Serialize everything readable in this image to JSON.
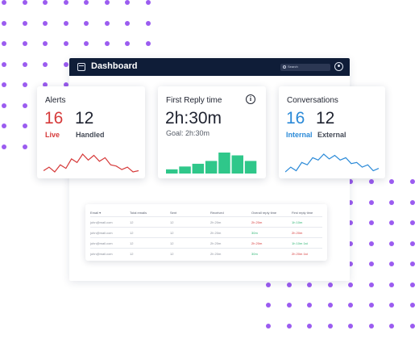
{
  "app": {
    "title": "Dashboard",
    "search_placeholder": "Search"
  },
  "cards": {
    "alerts": {
      "title": "Alerts",
      "live_count": "16",
      "live_label": "Live",
      "handled_count": "12",
      "handled_label": "Handled",
      "sparkline": [
        6,
        9,
        5,
        11,
        8,
        16,
        13,
        20,
        15,
        19,
        14,
        17,
        11,
        10,
        7,
        9,
        5,
        6
      ]
    },
    "first_reply": {
      "title": "First Reply time",
      "value": "2h:30m",
      "goal": "Goal: 2h:30m",
      "bars": [
        3,
        5,
        7,
        9,
        15,
        13,
        9
      ]
    },
    "conversations": {
      "title": "Conversations",
      "internal_count": "16",
      "internal_label": "Internal",
      "external_count": "12",
      "external_label": "External",
      "sparkline": [
        6,
        10,
        7,
        14,
        12,
        18,
        16,
        21,
        17,
        20,
        16,
        18,
        13,
        14,
        10,
        12,
        7,
        9
      ]
    }
  },
  "table": {
    "headers": [
      "Email",
      "Total emails",
      "Sent",
      "Received",
      "Overall reply time",
      "First reply time"
    ],
    "rows": [
      {
        "email": "john@mail.com",
        "total": "12",
        "sent": "12",
        "received": "2h 20m",
        "overall": "2h 20m",
        "first": "1h 10m"
      },
      {
        "email": "john@mail.com",
        "total": "12",
        "sent": "12",
        "received": "2h 20m",
        "overall": "30m",
        "first": "2h 20m"
      },
      {
        "email": "john@mail.com",
        "total": "12",
        "sent": "12",
        "received": "2h 20m",
        "overall": "2h 20m",
        "first": "1h 10m 1st"
      },
      {
        "email": "john@mail.com",
        "total": "12",
        "sent": "12",
        "received": "2h 20m",
        "overall": "30m",
        "first": "2h 20m 1st"
      }
    ]
  },
  "colors": {
    "accent_purple": "#9b5cf0",
    "nav_dark": "#0f1d38",
    "alert_red": "#d63a3a",
    "reply_green": "#2fc78a",
    "internal_blue": "#2b8ad8"
  }
}
